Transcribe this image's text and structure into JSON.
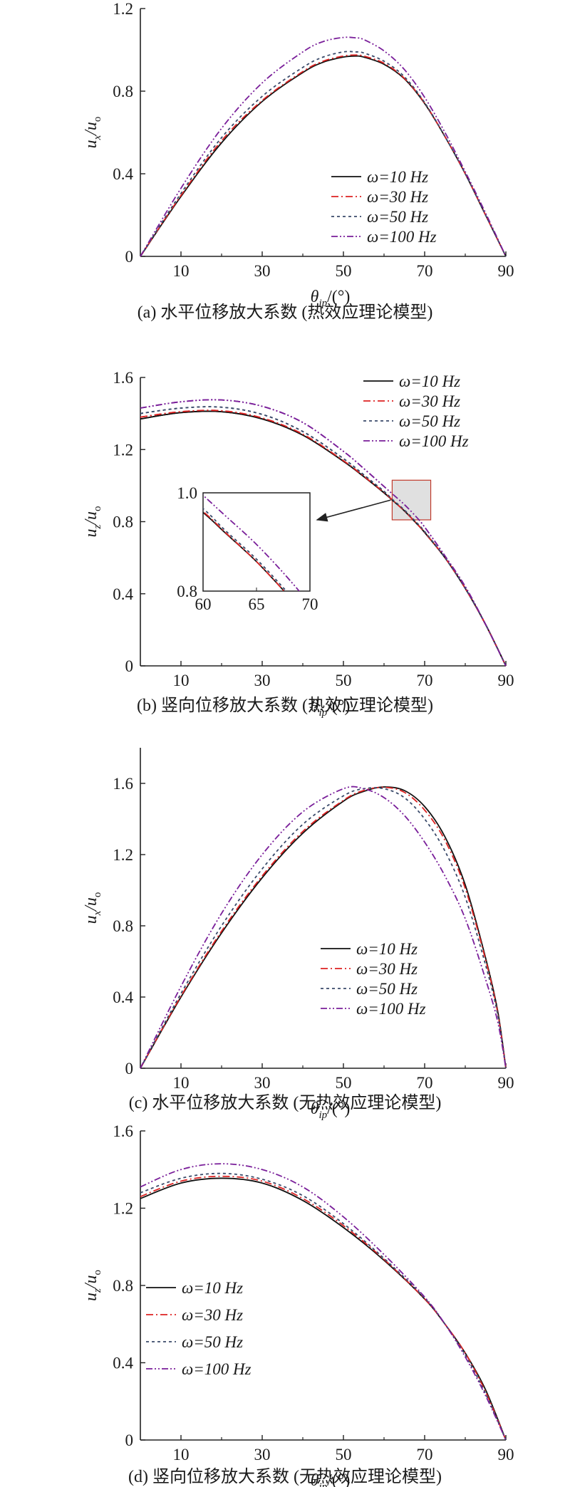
{
  "colors": {
    "s10": "#111111",
    "s30": "#dd2222",
    "s50": "#3a4a6a",
    "s100": "#7a1f9a",
    "inset_box_fill": "#e0e0e0"
  },
  "chart_data": [
    {
      "id": "a",
      "type": "line",
      "caption": "(a) 水平位移放大系数 (热效应理论模型)",
      "ylabel_main": "u",
      "ylabel_sub": "x",
      "ylabel_den": "/u",
      "ylabel_den_sub": "o",
      "xlabel_main": "θ",
      "xlabel_sub": "ip",
      "xlabel_rest": "/(°)",
      "xlim": [
        0,
        90
      ],
      "ylim": [
        0,
        1.2
      ],
      "xticks": [
        10,
        30,
        50,
        70,
        90
      ],
      "yticks": [
        0,
        0.4,
        0.8,
        1.2
      ],
      "ytick_labels": [
        "0",
        "0.4",
        "0.8",
        "1.2"
      ],
      "legend_position": "right-middle",
      "grid": false,
      "series": [
        {
          "name": "ω=10 Hz",
          "freq": "10",
          "style": "solid",
          "x": [
            0,
            10,
            20,
            30,
            40,
            45,
            50,
            53,
            55,
            60,
            65,
            70,
            75,
            80,
            85,
            90
          ],
          "y": [
            0,
            0.29,
            0.55,
            0.75,
            0.89,
            0.94,
            0.965,
            0.97,
            0.965,
            0.93,
            0.86,
            0.74,
            0.58,
            0.4,
            0.2,
            0
          ]
        },
        {
          "name": "ω=30 Hz",
          "freq": "30",
          "style": "dashdot",
          "x": [
            0,
            10,
            20,
            30,
            40,
            45,
            50,
            53,
            55,
            60,
            65,
            70,
            75,
            80,
            85,
            90
          ],
          "y": [
            0,
            0.295,
            0.56,
            0.755,
            0.895,
            0.945,
            0.97,
            0.975,
            0.97,
            0.935,
            0.862,
            0.742,
            0.58,
            0.4,
            0.2,
            0
          ]
        },
        {
          "name": "ω=50 Hz",
          "freq": "50",
          "style": "dashed",
          "x": [
            0,
            10,
            20,
            30,
            40,
            45,
            50,
            53,
            55,
            60,
            65,
            70,
            75,
            80,
            85,
            90
          ],
          "y": [
            0,
            0.305,
            0.575,
            0.775,
            0.915,
            0.965,
            0.99,
            0.99,
            0.985,
            0.945,
            0.87,
            0.745,
            0.58,
            0.4,
            0.2,
            0
          ]
        },
        {
          "name": "ω=100 Hz",
          "freq": "100",
          "style": "dashdotdot",
          "x": [
            0,
            10,
            20,
            30,
            40,
            45,
            50,
            53,
            55,
            60,
            65,
            70,
            75,
            80,
            85,
            90
          ],
          "y": [
            0,
            0.33,
            0.62,
            0.84,
            0.99,
            1.04,
            1.06,
            1.058,
            1.05,
            0.995,
            0.905,
            0.77,
            0.6,
            0.41,
            0.21,
            0
          ]
        }
      ]
    },
    {
      "id": "b",
      "type": "line",
      "caption": "(b) 竖向位移放大系数 (热效应理论模型)",
      "ylabel_main": "u",
      "ylabel_sub": "z",
      "ylabel_den": "/u",
      "ylabel_den_sub": "o",
      "xlabel_main": "θ",
      "xlabel_sub": "ip",
      "xlabel_rest": "/(°)",
      "xlim": [
        0,
        90
      ],
      "ylim": [
        0,
        1.6
      ],
      "xticks": [
        10,
        30,
        50,
        70,
        90
      ],
      "yticks": [
        0,
        0.4,
        0.8,
        1.2,
        1.6
      ],
      "ytick_labels": [
        "0",
        "0.4",
        "0.8",
        "1.2",
        "1.6"
      ],
      "legend_position": "top-right",
      "grid": false,
      "inset": {
        "xlim": [
          60,
          70
        ],
        "ylim": [
          0.8,
          1.0
        ],
        "xticks": [
          60,
          65,
          70
        ],
        "yticks": [
          0.8,
          1.0
        ],
        "ytick_labels": [
          "0.8",
          "1.0"
        ]
      },
      "series": [
        {
          "name": "ω=10 Hz",
          "freq": "10",
          "style": "solid",
          "x": [
            0,
            10,
            20,
            30,
            40,
            50,
            55,
            60,
            62,
            65,
            68,
            70,
            75,
            80,
            85,
            90
          ],
          "y": [
            1.37,
            1.405,
            1.41,
            1.37,
            1.28,
            1.135,
            1.05,
            0.96,
            0.92,
            0.86,
            0.79,
            0.74,
            0.6,
            0.43,
            0.23,
            0
          ]
        },
        {
          "name": "ω=30 Hz",
          "freq": "30",
          "style": "dashdot",
          "x": [
            0,
            10,
            20,
            30,
            40,
            50,
            55,
            60,
            62,
            65,
            68,
            70,
            75,
            80,
            85,
            90
          ],
          "y": [
            1.38,
            1.41,
            1.415,
            1.375,
            1.285,
            1.138,
            1.052,
            0.962,
            0.921,
            0.86,
            0.79,
            0.74,
            0.6,
            0.43,
            0.23,
            0
          ]
        },
        {
          "name": "ω=50 Hz",
          "freq": "50",
          "style": "dashed",
          "x": [
            0,
            10,
            20,
            30,
            40,
            50,
            55,
            60,
            62,
            65,
            68,
            70,
            75,
            80,
            85,
            90
          ],
          "y": [
            1.4,
            1.43,
            1.435,
            1.395,
            1.3,
            1.15,
            1.06,
            0.968,
            0.925,
            0.865,
            0.795,
            0.745,
            0.6,
            0.43,
            0.23,
            0
          ]
        },
        {
          "name": "ω=100 Hz",
          "freq": "100",
          "style": "dashdotdot",
          "x": [
            0,
            10,
            20,
            30,
            40,
            50,
            55,
            60,
            62,
            65,
            68,
            70,
            75,
            80,
            85,
            90
          ],
          "y": [
            1.43,
            1.465,
            1.475,
            1.44,
            1.35,
            1.19,
            1.095,
            0.995,
            0.955,
            0.895,
            0.825,
            0.77,
            0.61,
            0.44,
            0.23,
            0
          ]
        }
      ]
    },
    {
      "id": "c",
      "type": "line",
      "caption": "(c) 水平位移放大系数 (无热效应理论模型)",
      "ylabel_main": "u",
      "ylabel_sub": "x",
      "ylabel_den": "/u",
      "ylabel_den_sub": "o",
      "xlabel_main": "θ",
      "xlabel_sub": "ip",
      "xlabel_rest": "/(°)",
      "xlim": [
        0,
        90
      ],
      "ylim": [
        0,
        1.8
      ],
      "xticks": [
        10,
        30,
        50,
        70,
        90
      ],
      "yticks": [
        0,
        0.4,
        0.8,
        1.2,
        1.6
      ],
      "ytick_labels": [
        "0",
        "0.4",
        "0.8",
        "1.2",
        "1.6"
      ],
      "legend_position": "right-lower",
      "grid": false,
      "series": [
        {
          "name": "ω=10 Hz",
          "freq": "10",
          "style": "solid",
          "x": [
            0,
            10,
            20,
            30,
            40,
            50,
            55,
            60,
            65,
            70,
            75,
            80,
            85,
            88,
            90
          ],
          "y": [
            0,
            0.4,
            0.76,
            1.07,
            1.32,
            1.5,
            1.555,
            1.58,
            1.56,
            1.47,
            1.3,
            1.03,
            0.62,
            0.32,
            0
          ]
        },
        {
          "name": "ω=30 Hz",
          "freq": "30",
          "style": "dashdot",
          "x": [
            0,
            10,
            20,
            30,
            40,
            50,
            55,
            60,
            65,
            70,
            75,
            80,
            85,
            88,
            90
          ],
          "y": [
            0,
            0.405,
            0.77,
            1.08,
            1.33,
            1.505,
            1.56,
            1.578,
            1.55,
            1.45,
            1.28,
            1.01,
            0.61,
            0.31,
            0
          ]
        },
        {
          "name": "ω=50 Hz",
          "freq": "50",
          "style": "dashed",
          "x": [
            0,
            10,
            20,
            30,
            40,
            50,
            55,
            60,
            65,
            70,
            75,
            80,
            85,
            88,
            90
          ],
          "y": [
            0,
            0.42,
            0.8,
            1.12,
            1.37,
            1.53,
            1.57,
            1.57,
            1.52,
            1.4,
            1.22,
            0.96,
            0.58,
            0.3,
            0
          ]
        },
        {
          "name": "ω=100 Hz",
          "freq": "100",
          "style": "dashdotdot",
          "x": [
            0,
            10,
            20,
            30,
            40,
            50,
            55,
            60,
            65,
            70,
            75,
            80,
            85,
            88,
            90
          ],
          "y": [
            0,
            0.46,
            0.87,
            1.2,
            1.44,
            1.57,
            1.57,
            1.52,
            1.42,
            1.27,
            1.08,
            0.84,
            0.5,
            0.26,
            0
          ]
        }
      ]
    },
    {
      "id": "d",
      "type": "line",
      "caption": "(d) 竖向位移放大系数 (无热效应理论模型)",
      "ylabel_main": "u",
      "ylabel_sub": "z",
      "ylabel_den": "/u",
      "ylabel_den_sub": "o",
      "xlabel_main": "θ",
      "xlabel_sub": "ip",
      "xlabel_rest": "/(°)",
      "xlim": [
        0,
        90
      ],
      "ylim": [
        0,
        1.6
      ],
      "xticks": [
        10,
        30,
        50,
        70,
        90
      ],
      "yticks": [
        0,
        0.4,
        0.8,
        1.2,
        1.6
      ],
      "ytick_labels": [
        "0",
        "0.4",
        "0.8",
        "1.2",
        "1.6"
      ],
      "legend_position": "left-lower",
      "grid": false,
      "series": [
        {
          "name": "ω=10 Hz",
          "freq": "10",
          "style": "solid",
          "x": [
            0,
            10,
            20,
            30,
            40,
            50,
            60,
            70,
            75,
            80,
            85,
            90
          ],
          "y": [
            1.25,
            1.33,
            1.355,
            1.33,
            1.24,
            1.1,
            0.93,
            0.73,
            0.6,
            0.45,
            0.26,
            0
          ]
        },
        {
          "name": "ω=30 Hz",
          "freq": "30",
          "style": "dashdot",
          "x": [
            0,
            10,
            20,
            30,
            40,
            50,
            60,
            70,
            75,
            80,
            85,
            90
          ],
          "y": [
            1.26,
            1.34,
            1.365,
            1.34,
            1.25,
            1.11,
            0.935,
            0.73,
            0.6,
            0.45,
            0.25,
            0
          ]
        },
        {
          "name": "ω=50 Hz",
          "freq": "50",
          "style": "dashed",
          "x": [
            0,
            10,
            20,
            30,
            40,
            50,
            60,
            70,
            75,
            80,
            85,
            90
          ],
          "y": [
            1.28,
            1.355,
            1.38,
            1.35,
            1.265,
            1.12,
            0.94,
            0.735,
            0.6,
            0.44,
            0.24,
            0
          ]
        },
        {
          "name": "ω=100 Hz",
          "freq": "100",
          "style": "dashdotdot",
          "x": [
            0,
            10,
            20,
            30,
            40,
            50,
            60,
            70,
            75,
            80,
            85,
            90
          ],
          "y": [
            1.31,
            1.4,
            1.43,
            1.4,
            1.31,
            1.155,
            0.96,
            0.74,
            0.6,
            0.43,
            0.23,
            0
          ]
        }
      ]
    }
  ]
}
